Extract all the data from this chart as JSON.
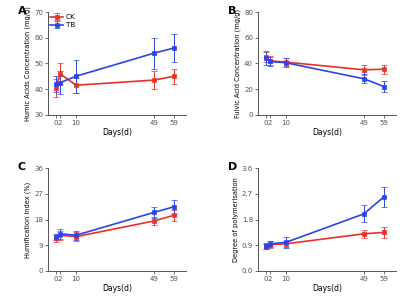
{
  "days": [
    0,
    2,
    10,
    49,
    59
  ],
  "panel_A": {
    "label": "A",
    "ylabel": "Humic Acids Concentration (mg/g)",
    "xlabel": "Days(d)",
    "ylim": [
      30,
      70
    ],
    "yticks": [
      30,
      40,
      50,
      60,
      70
    ],
    "CK_mean": [
      40.5,
      46.0,
      41.5,
      43.5,
      45.0
    ],
    "CK_err": [
      3.5,
      4.0,
      3.0,
      3.5,
      3.0
    ],
    "TB_mean": [
      42.0,
      42.5,
      45.0,
      54.0,
      56.0
    ],
    "TB_err": [
      3.0,
      4.5,
      6.5,
      6.0,
      5.5
    ]
  },
  "panel_B": {
    "label": "B",
    "ylabel": "Fulvic Acid Concentration (mg/g)",
    "xlabel": "Days(d)",
    "ylim": [
      0,
      80
    ],
    "yticks": [
      0,
      20,
      40,
      60,
      80
    ],
    "CK_mean": [
      45.0,
      42.0,
      41.0,
      35.0,
      35.5
    ],
    "CK_err": [
      4.0,
      3.5,
      3.0,
      4.0,
      3.5
    ],
    "TB_mean": [
      44.5,
      41.5,
      40.5,
      28.0,
      22.0
    ],
    "TB_err": [
      5.5,
      3.5,
      3.5,
      3.5,
      4.0
    ]
  },
  "panel_C": {
    "label": "C",
    "ylabel": "Humification Index (%)",
    "xlabel": "Days(d)",
    "ylim": [
      0,
      36
    ],
    "yticks": [
      0,
      9,
      18,
      27,
      36
    ],
    "CK_mean": [
      11.5,
      12.5,
      12.0,
      17.5,
      19.5
    ],
    "CK_err": [
      1.2,
      1.5,
      1.5,
      1.5,
      2.0
    ],
    "TB_mean": [
      12.0,
      13.0,
      12.5,
      20.5,
      22.5
    ],
    "TB_err": [
      1.0,
      1.8,
      1.5,
      2.0,
      2.5
    ]
  },
  "panel_D": {
    "label": "D",
    "ylabel": "Degree of polymerisation",
    "xlabel": "Days(d)",
    "ylim": [
      0.0,
      3.6
    ],
    "yticks": [
      0.0,
      0.9,
      1.8,
      2.7,
      3.6
    ],
    "CK_mean": [
      0.85,
      0.92,
      0.95,
      1.3,
      1.35
    ],
    "CK_err": [
      0.08,
      0.12,
      0.1,
      0.15,
      0.18
    ],
    "TB_mean": [
      0.88,
      0.95,
      1.0,
      2.0,
      2.6
    ],
    "TB_err": [
      0.1,
      0.1,
      0.18,
      0.3,
      0.35
    ]
  },
  "color_CK": "#e8312a",
  "color_TB": "#2b44e8",
  "bg_color": "#ffffff",
  "linewidth": 1.2,
  "markersize": 3.5,
  "capsize": 2.5,
  "label_CK": "CK",
  "label_TB": "TB"
}
